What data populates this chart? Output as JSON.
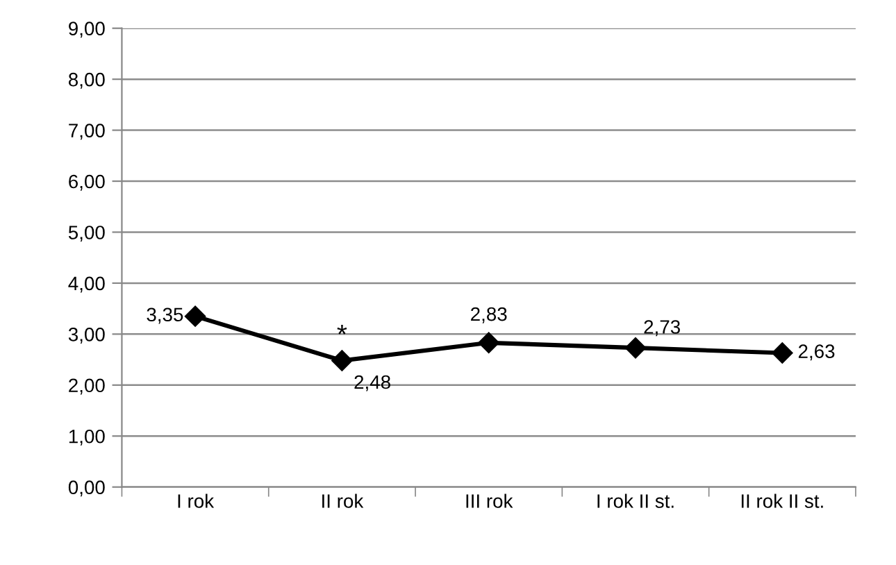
{
  "chart_data": {
    "type": "line",
    "categories": [
      "I rok",
      "II rok",
      "III rok",
      "I rok II st.",
      "II rok II st."
    ],
    "series": [
      {
        "color": "#000000",
        "values": [
          3.35,
          2.48,
          2.83,
          2.73,
          2.63
        ],
        "value_labels": [
          "3,35",
          "2,48",
          "2,83",
          "2,73",
          "2,63"
        ]
      }
    ],
    "ylim": [
      0,
      9
    ],
    "yticks": [
      {
        "value": 0,
        "label": "0,00"
      },
      {
        "value": 1,
        "label": "1,00"
      },
      {
        "value": 2,
        "label": "2,00"
      },
      {
        "value": 3,
        "label": "3,00"
      },
      {
        "value": 4,
        "label": "4,00"
      },
      {
        "value": 5,
        "label": "5,00"
      },
      {
        "value": 6,
        "label": "6,00"
      },
      {
        "value": 7,
        "label": "7,00"
      },
      {
        "value": 8,
        "label": "8,00"
      },
      {
        "value": 9,
        "label": "9,00"
      }
    ],
    "annotations": [
      {
        "text": "*",
        "x": "II rok",
        "y": 2.48
      }
    ],
    "grid": "y",
    "marker": "diamond",
    "line_style": "solid",
    "legend": false
  }
}
